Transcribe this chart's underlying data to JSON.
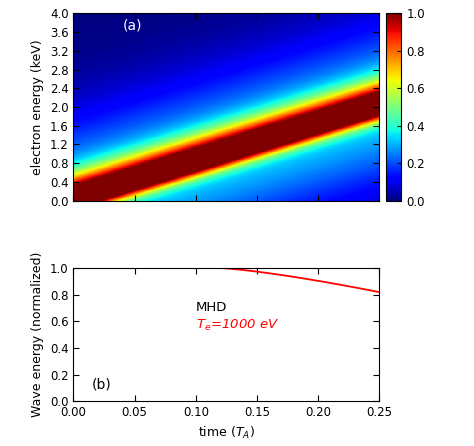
{
  "panel_a_label": "(a)",
  "panel_b_label": "(b)",
  "xlim": [
    0.0,
    0.25
  ],
  "ylim_a": [
    0.0,
    4.0
  ],
  "ylim_b": [
    0.0,
    1.0
  ],
  "xlabel": "time ($T_A$)",
  "ylabel_a": "electron energy (keV)",
  "ylabel_b": "Wave energy (normalized)",
  "xticks": [
    0.0,
    0.05,
    0.1,
    0.15,
    0.2,
    0.25
  ],
  "yticks_a": [
    0.0,
    0.4,
    0.8,
    1.2,
    1.6,
    2.0,
    2.4,
    2.8,
    3.2,
    3.6,
    4.0
  ],
  "yticks_b": [
    0.0,
    0.2,
    0.4,
    0.6,
    0.8,
    1.0
  ],
  "colorbar_ticks": [
    0.0,
    0.2,
    0.4,
    0.6,
    0.8,
    1.0
  ],
  "mhd_label": "MHD",
  "te_label": "$T_e$=1000 eV",
  "mhd_color": "black",
  "te_color": "red",
  "E_peak_slope": 8.0,
  "sigma_narrow": 0.28,
  "sigma_broad": 1.2,
  "broad_amplitude": 0.35
}
